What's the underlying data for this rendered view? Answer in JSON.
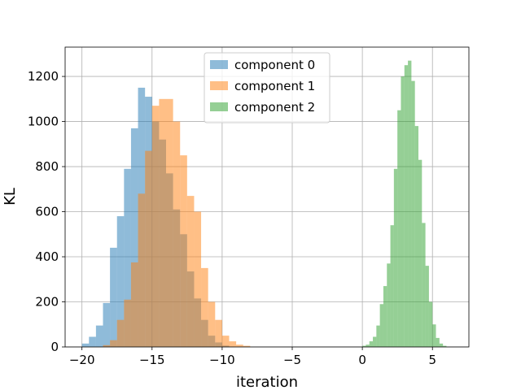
{
  "chart_data": {
    "type": "bar",
    "subtype": "histogram",
    "title": "",
    "xlabel": "iteration",
    "ylabel": "KL",
    "xlim": [
      -21.2,
      7.6
    ],
    "ylim": [
      0,
      1330
    ],
    "xticks": [
      -20,
      -15,
      -10,
      -5,
      0,
      5
    ],
    "xtick_labels": [
      "−20",
      "−15",
      "−10",
      "−5",
      "0",
      "5"
    ],
    "yticks": [
      0,
      200,
      400,
      600,
      800,
      1000,
      1200
    ],
    "ytick_labels": [
      "0",
      "200",
      "400",
      "600",
      "800",
      "1000",
      "1200"
    ],
    "grid": true,
    "legend_position": "top-center",
    "series": [
      {
        "name": "component 0",
        "color": "#1f77b4",
        "alpha": 0.5,
        "bins": [
          [
            -20.0,
            -19.5,
            15
          ],
          [
            -19.5,
            -19.0,
            45
          ],
          [
            -19.0,
            -18.5,
            95
          ],
          [
            -18.5,
            -18.0,
            195
          ],
          [
            -18.0,
            -17.5,
            440
          ],
          [
            -17.5,
            -17.0,
            580
          ],
          [
            -17.0,
            -16.5,
            790
          ],
          [
            -16.5,
            -16.0,
            970
          ],
          [
            -16.0,
            -15.5,
            1150
          ],
          [
            -15.5,
            -15.0,
            1110
          ],
          [
            -15.0,
            -14.5,
            1000
          ],
          [
            -14.5,
            -14.0,
            920
          ],
          [
            -14.0,
            -13.5,
            770
          ],
          [
            -13.5,
            -13.0,
            610
          ],
          [
            -13.0,
            -12.5,
            500
          ],
          [
            -12.5,
            -12.0,
            335
          ],
          [
            -12.0,
            -11.5,
            215
          ],
          [
            -11.5,
            -11.0,
            120
          ],
          [
            -11.0,
            -10.5,
            50
          ],
          [
            -10.5,
            -10.0,
            20
          ],
          [
            -10.0,
            -9.5,
            6
          ]
        ]
      },
      {
        "name": "component 1",
        "color": "#ff7f0e",
        "alpha": 0.5,
        "bins": [
          [
            -18.5,
            -18.0,
            8
          ],
          [
            -18.0,
            -17.5,
            30
          ],
          [
            -17.5,
            -17.0,
            120
          ],
          [
            -17.0,
            -16.5,
            210
          ],
          [
            -16.5,
            -16.0,
            375
          ],
          [
            -16.0,
            -15.5,
            680
          ],
          [
            -15.5,
            -15.0,
            870
          ],
          [
            -15.0,
            -14.5,
            1070
          ],
          [
            -14.5,
            -14.0,
            1100
          ],
          [
            -14.0,
            -13.5,
            1100
          ],
          [
            -13.5,
            -13.0,
            1000
          ],
          [
            -13.0,
            -12.5,
            850
          ],
          [
            -12.5,
            -12.0,
            670
          ],
          [
            -12.0,
            -11.5,
            600
          ],
          [
            -11.5,
            -11.0,
            350
          ],
          [
            -11.0,
            -10.5,
            200
          ],
          [
            -10.5,
            -10.0,
            120
          ],
          [
            -10.0,
            -9.5,
            50
          ],
          [
            -9.5,
            -9.0,
            25
          ],
          [
            -9.0,
            -8.5,
            10
          ],
          [
            -8.5,
            -8.0,
            5
          ]
        ]
      },
      {
        "name": "component 2",
        "color": "#2ca02c",
        "alpha": 0.5,
        "bins": [
          [
            0.0,
            0.25,
            5
          ],
          [
            0.25,
            0.5,
            10
          ],
          [
            0.5,
            0.75,
            25
          ],
          [
            0.75,
            1.0,
            45
          ],
          [
            1.0,
            1.25,
            95
          ],
          [
            1.25,
            1.5,
            190
          ],
          [
            1.5,
            1.75,
            270
          ],
          [
            1.75,
            2.0,
            370
          ],
          [
            2.0,
            2.25,
            540
          ],
          [
            2.25,
            2.5,
            790
          ],
          [
            2.5,
            2.75,
            1050
          ],
          [
            2.75,
            3.0,
            1200
          ],
          [
            3.0,
            3.25,
            1250
          ],
          [
            3.25,
            3.5,
            1270
          ],
          [
            3.5,
            3.75,
            1180
          ],
          [
            3.75,
            4.0,
            980
          ],
          [
            4.0,
            4.25,
            830
          ],
          [
            4.25,
            4.5,
            550
          ],
          [
            4.5,
            4.75,
            360
          ],
          [
            4.75,
            5.0,
            200
          ],
          [
            5.0,
            5.25,
            100
          ],
          [
            5.25,
            5.5,
            40
          ],
          [
            5.5,
            5.75,
            15
          ],
          [
            5.75,
            6.0,
            5
          ]
        ]
      }
    ]
  }
}
